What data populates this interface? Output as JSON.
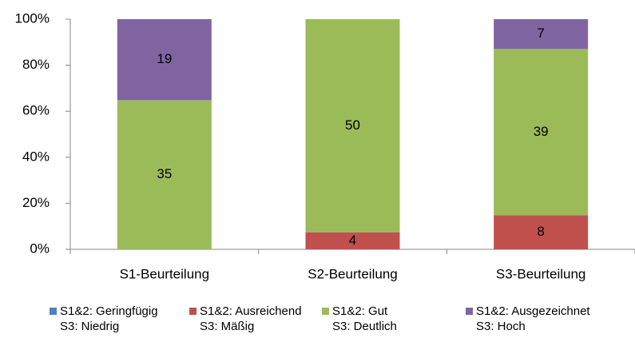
{
  "chart_data": {
    "type": "bar",
    "stacking": "percent",
    "categories": [
      "S1-Beurteilung",
      "S2-Beurteilung",
      "S3-Beurteilung"
    ],
    "series": [
      {
        "name": "S1&2: Geringfügig\nS3: Niedrig",
        "color": "#4f81bd",
        "values": [
          0,
          0,
          0
        ]
      },
      {
        "name": "S1&2: Ausreichend\nS3: Mäßig",
        "color": "#c0504d",
        "values": [
          0,
          4,
          8
        ]
      },
      {
        "name": "S1&2: Gut\nS3: Deutlich",
        "color": "#9bbb59",
        "values": [
          35,
          50,
          39
        ]
      },
      {
        "name": "S1&2: Ausgezeichnet\nS3: Hoch",
        "color": "#8064a2",
        "values": [
          19,
          0,
          7
        ]
      }
    ],
    "ylim": [
      0,
      100
    ],
    "yticks": [
      {
        "value": 0,
        "label": "0%"
      },
      {
        "value": 20,
        "label": "20%"
      },
      {
        "value": 40,
        "label": "40%"
      },
      {
        "value": 60,
        "label": "60%"
      },
      {
        "value": 80,
        "label": "80%"
      },
      {
        "value": 100,
        "label": "100%"
      }
    ],
    "grid": false,
    "legend": "bottom"
  }
}
